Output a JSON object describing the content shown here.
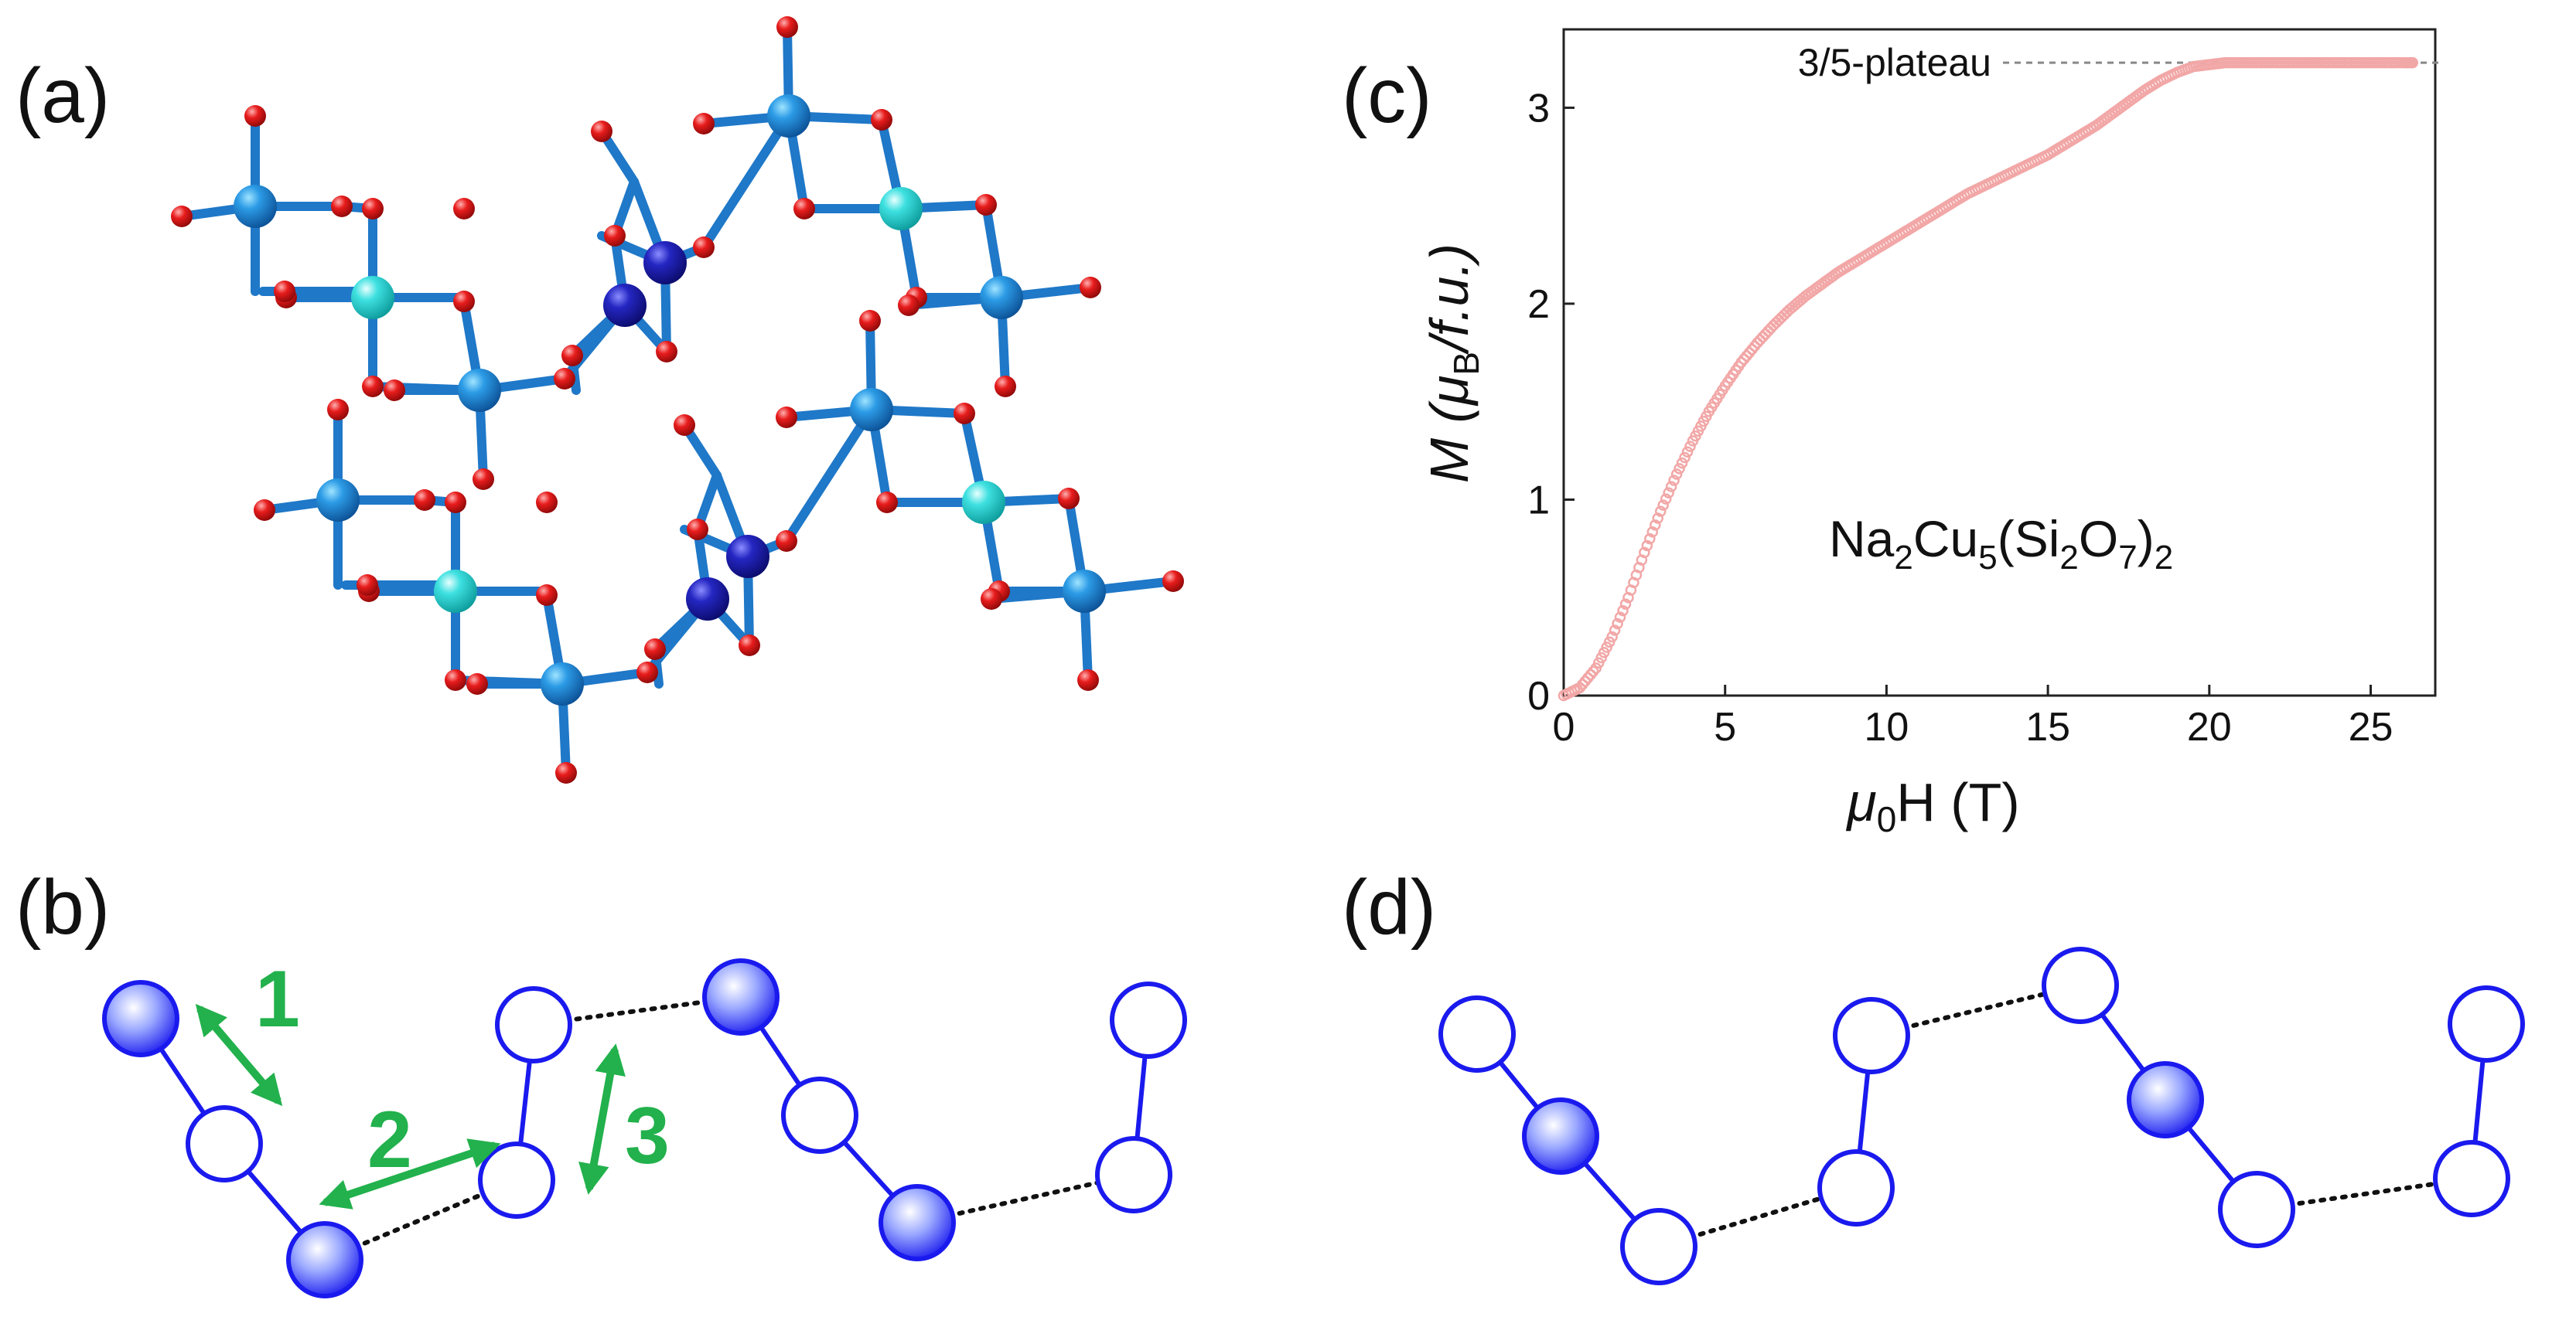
{
  "panels": {
    "a": {
      "label": "(a)"
    },
    "b": {
      "label": "(b)",
      "arrow_labels": [
        "1",
        "2",
        "3"
      ]
    },
    "c": {
      "label": "(c)"
    },
    "d": {
      "label": "(d)"
    }
  },
  "chart_data": {
    "type": "scatter",
    "x_label": {
      "prefix": "μ",
      "sub": "0",
      "rest": "H (T)"
    },
    "y_label": {
      "prefix": "M (μ",
      "sub": "B",
      "rest": "/f.u.)"
    },
    "xlim": [
      0,
      27
    ],
    "ylim": [
      0,
      3.4
    ],
    "xticks": [
      "0",
      "5",
      "10",
      "15",
      "20",
      "25"
    ],
    "yticks": [
      "0",
      "1",
      "2",
      "3"
    ],
    "plateau_label": "3/5-plateau",
    "plateau_value": 3.23,
    "compound": {
      "parts": [
        "Na",
        "2",
        "Cu",
        "5",
        "(Si",
        "2",
        "O",
        "7",
        ")",
        "2"
      ]
    },
    "marker_color": "#f2a7a7",
    "series": [
      {
        "x": [
          0,
          0.5,
          1,
          1.5,
          2,
          2.5,
          3,
          3.5,
          4,
          4.5,
          5,
          5.5,
          6,
          6.5,
          7,
          7.5,
          8,
          8.5,
          9,
          9.5,
          10,
          10.5,
          11,
          11.5,
          12,
          12.5,
          13,
          13.5,
          14,
          14.5,
          15,
          15.5,
          16,
          16.5,
          17,
          17.5,
          18,
          18.5,
          19,
          19.5,
          20,
          20.5,
          21,
          21.5,
          22,
          22.5,
          23,
          23.5,
          24,
          24.5,
          25,
          25.5,
          26,
          26.3
        ],
        "y": [
          0,
          0.04,
          0.14,
          0.3,
          0.5,
          0.73,
          0.94,
          1.13,
          1.3,
          1.45,
          1.58,
          1.7,
          1.8,
          1.89,
          1.97,
          2.04,
          2.1,
          2.16,
          2.21,
          2.26,
          2.31,
          2.36,
          2.41,
          2.46,
          2.51,
          2.56,
          2.6,
          2.64,
          2.68,
          2.72,
          2.76,
          2.81,
          2.86,
          2.91,
          2.97,
          3.03,
          3.09,
          3.14,
          3.18,
          3.21,
          3.22,
          3.23,
          3.23,
          3.23,
          3.23,
          3.23,
          3.23,
          3.23,
          3.23,
          3.23,
          3.23,
          3.23,
          3.23,
          3.23
        ]
      }
    ]
  },
  "colors": {
    "cu_blue": "#1e7fd0",
    "cu_navy": "#1a1aa6",
    "cu_cyan": "#2fd6d6",
    "oxygen": "#e0161a",
    "chain_blue": "#1a1aee",
    "arrow_green": "#22b14c"
  }
}
